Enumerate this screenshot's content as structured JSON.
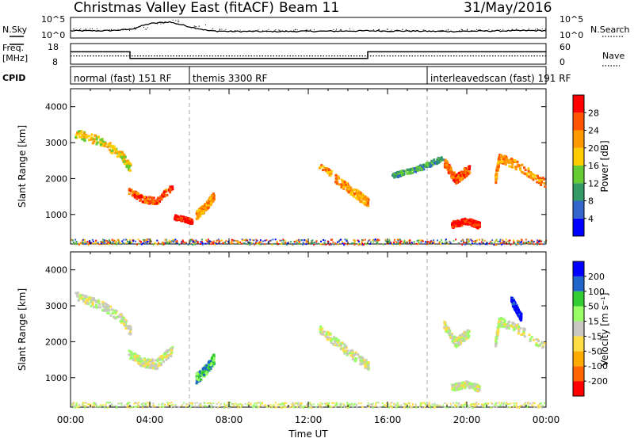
{
  "header": {
    "title": "Christmas Valley East (fitACF)",
    "beam": "Beam 11",
    "date": "31/May/2016"
  },
  "left_labels": {
    "nsky": "N.Sky",
    "freq_line1": "Freq.",
    "freq_line2": "[MHz]",
    "cpid": "CPID"
  },
  "right_labels": {
    "nsearch": "N.Search",
    "nave": "Nave"
  },
  "colors": {
    "power_scale": [
      "#0000ff",
      "#3366cc",
      "#339966",
      "#66cc33",
      "#ffcc00",
      "#ff9900",
      "#ff5500",
      "#ff0000"
    ],
    "velocity_scale": [
      "#ff0000",
      "#ff6600",
      "#ffaa00",
      "#ffdd44",
      "#c8c8c0",
      "#99ff66",
      "#33cc33",
      "#2266cc",
      "#0000ff"
    ],
    "ground_scatter": "#c8c8c0"
  },
  "chart_data": [
    {
      "type": "line",
      "panel": "noise",
      "ylabels_left": [
        "10^5",
        "10^0"
      ],
      "ylabels_right": [
        "10^5",
        "10^0"
      ],
      "series": [
        {
          "values_by_hour": [
            0.35,
            0.35,
            0.36,
            0.42,
            0.7,
            0.78,
            0.55,
            0.35,
            0.32,
            0.32,
            0.32,
            0.32,
            0.33,
            0.33,
            0.34,
            0.35,
            0.34,
            0.34,
            0.33,
            0.32,
            0.33,
            0.34,
            0.35,
            0.36,
            0.36
          ]
        }
      ]
    },
    {
      "type": "line",
      "panel": "frequency",
      "ylabels_left": [
        "18",
        "8"
      ],
      "ylabels_right": [
        "60",
        "0"
      ],
      "x_hours": [
        0,
        3,
        3,
        15,
        15,
        24
      ],
      "freq_mhz": [
        14,
        14,
        10.8,
        10.8,
        14,
        14
      ],
      "nave": [
        24,
        24,
        24,
        24,
        24,
        24
      ]
    },
    {
      "type": "table",
      "panel": "cpid",
      "segments": [
        {
          "label": "normal (fast) 151 RF",
          "start": 0,
          "end": 6
        },
        {
          "label": "themis 3300 RF",
          "start": 6,
          "end": 18
        },
        {
          "label": "interleavedscan (fast) 191 RF",
          "start": 18,
          "end": 24
        }
      ]
    },
    {
      "type": "heatmap",
      "panel": "power",
      "ylabel": "Slant Range [km]",
      "yticks": [
        1000,
        2000,
        3000,
        4000
      ],
      "ylim": [
        180,
        4500
      ],
      "colorbar_label": "Power [dB]",
      "colorbar_ticks": [
        "28",
        "24",
        "20",
        "16",
        "12",
        "8",
        "4"
      ],
      "scatter_bands": [
        {
          "x": [
            0.2,
            1.5,
            2.5,
            3.0
          ],
          "range": [
            3300,
            3050,
            2700,
            2300
          ],
          "width": 250,
          "level": 4
        },
        {
          "x": [
            2.9,
            3.6,
            4.3,
            5.1
          ],
          "range": [
            1700,
            1450,
            1400,
            1800
          ],
          "width": 180,
          "level": 6
        },
        {
          "x": [
            5.2,
            5.7,
            6.1
          ],
          "range": [
            950,
            900,
            820
          ],
          "width": 130,
          "level": 7
        },
        {
          "x": [
            6.3,
            6.8,
            7.2
          ],
          "range": [
            1000,
            1250,
            1550
          ],
          "width": 220,
          "level": 5
        },
        {
          "x": [
            12.5,
            13.6,
            14.5,
            15.0
          ],
          "range": [
            2400,
            1900,
            1550,
            1350
          ],
          "width": 250,
          "level": 5
        },
        {
          "x": [
            16.2,
            17.5,
            18.8
          ],
          "range": [
            2100,
            2300,
            2600
          ],
          "width": 150,
          "level": 2
        },
        {
          "x": [
            18.8,
            19.4,
            20.1
          ],
          "range": [
            2500,
            2000,
            2300
          ],
          "width": 250,
          "level": 6
        },
        {
          "x": [
            19.2,
            20.0,
            20.6
          ],
          "range": [
            750,
            850,
            720
          ],
          "width": 180,
          "level": 7
        },
        {
          "x": [
            21.4,
            21.6,
            22.5,
            23.9
          ],
          "range": [
            2000,
            2600,
            2400,
            1900
          ],
          "width": 250,
          "level": 5
        }
      ]
    },
    {
      "type": "heatmap",
      "panel": "velocity",
      "ylabel": "Slant Range [km]",
      "yticks": [
        1000,
        2000,
        3000,
        4000
      ],
      "ylim": [
        180,
        4500
      ],
      "colorbar_label": "Velocity [m s⁻¹]",
      "colorbar_ticks": [
        "200",
        "100",
        "50",
        "15",
        "-15",
        "-50",
        "-100",
        "-200"
      ],
      "xlabel": "Time UT",
      "xticks": [
        "00:00",
        "04:00",
        "08:00",
        "12:00",
        "16:00",
        "20:00",
        "00:00"
      ],
      "xlim": [
        0,
        24
      ],
      "scatter_bands": [
        {
          "x": [
            0.2,
            1.5,
            2.5,
            3.0
          ],
          "range": [
            3300,
            3050,
            2700,
            2300
          ],
          "width": 250,
          "level": 4
        },
        {
          "x": [
            2.9,
            3.6,
            4.3,
            5.1
          ],
          "range": [
            1700,
            1450,
            1400,
            1800
          ],
          "width": 250,
          "level": 4
        },
        {
          "x": [
            6.3,
            6.8,
            7.2
          ],
          "range": [
            1000,
            1250,
            1550
          ],
          "width": 280,
          "level": 6
        },
        {
          "x": [
            12.5,
            13.6,
            14.5,
            15.0
          ],
          "range": [
            2400,
            1900,
            1550,
            1350
          ],
          "width": 250,
          "level": 4
        },
        {
          "x": [
            18.8,
            19.4,
            20.1
          ],
          "range": [
            2500,
            2000,
            2300
          ],
          "width": 250,
          "level": 4
        },
        {
          "x": [
            19.2,
            20.0,
            20.6
          ],
          "range": [
            750,
            850,
            720
          ],
          "width": 180,
          "level": 4
        },
        {
          "x": [
            21.4,
            21.6,
            22.5,
            23.9
          ],
          "range": [
            2000,
            2600,
            2400,
            1900
          ],
          "width": 250,
          "level": 4
        },
        {
          "x": [
            22.2,
            22.7
          ],
          "range": [
            3200,
            2700
          ],
          "width": 200,
          "level": 8
        }
      ]
    }
  ]
}
